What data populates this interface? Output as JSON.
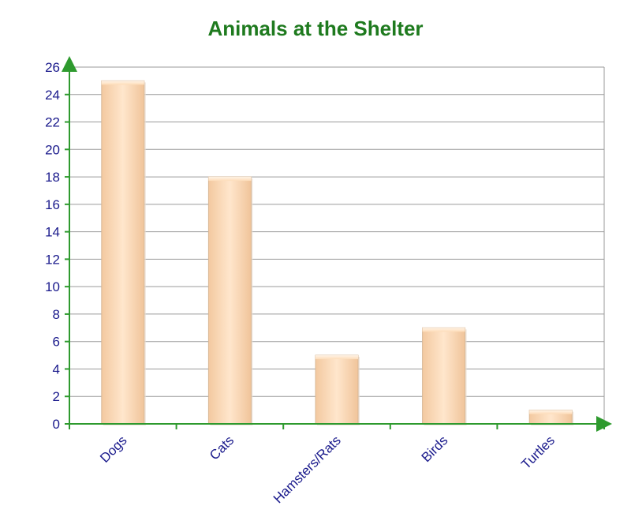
{
  "chart_data": {
    "type": "bar",
    "title": "Animals at the Shelter",
    "categories": [
      "Dogs",
      "Cats",
      "Hamsters/Rats",
      "Birds",
      "Turtles"
    ],
    "values": [
      25,
      18,
      5,
      7,
      1
    ],
    "xlabel": "",
    "ylabel": "",
    "ylim": [
      0,
      26
    ],
    "yticks": [
      "0",
      "2",
      "4",
      "6",
      "8",
      "10",
      "12",
      "14",
      "16",
      "18",
      "20",
      "22",
      "24",
      "26"
    ],
    "grid": true,
    "legend": "none",
    "colors": {
      "bar": "#fddcb8",
      "bar_edge": "#d9b896",
      "axis": "#2e9a2e",
      "grid": "#9a9a9a",
      "title": "#1e7a1e",
      "tick_label": "#1a1a8c"
    }
  }
}
